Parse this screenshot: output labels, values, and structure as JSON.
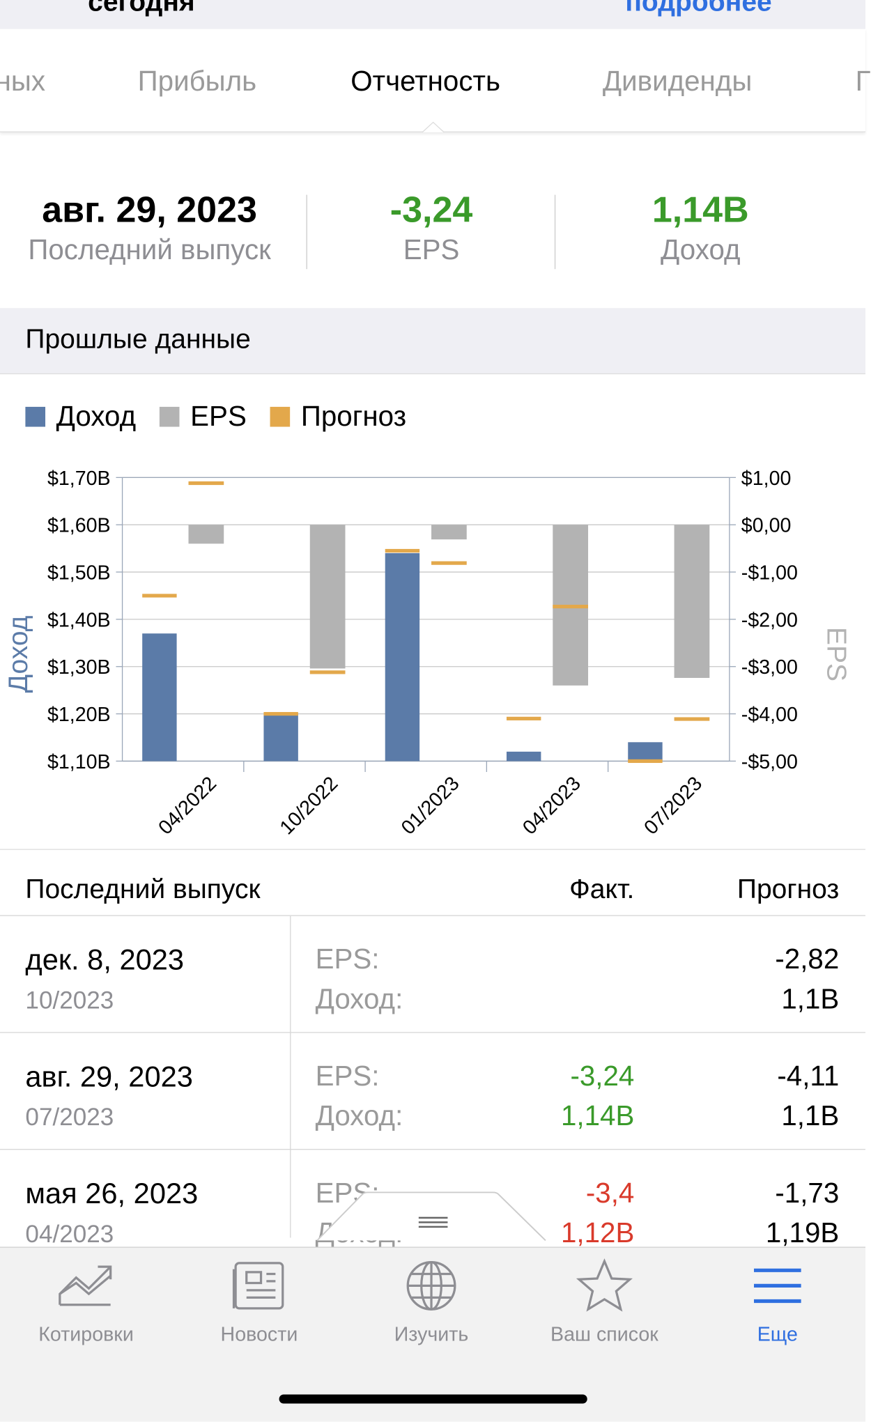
{
  "header": {
    "left": "сегодня",
    "right": "подробнее"
  },
  "tabs": [
    "ных",
    "Прибыль",
    "Отчетность",
    "Дивиденды",
    "Г"
  ],
  "selected_tab": 2,
  "summary": [
    {
      "value": "авг. 29, 2023",
      "label": "Последний выпуск"
    },
    {
      "value": "-3,24",
      "label": "EPS"
    },
    {
      "value": "1,14B",
      "label": "Доход"
    }
  ],
  "section_title": "Прошлые данные",
  "chart_data": {
    "type": "bar",
    "y_label": "Доход",
    "y2_label": "EPS",
    "legend": "top-left",
    "grid": true,
    "categories": [
      "04/2022",
      "10/2022",
      "01/2023",
      "04/2023",
      "07/2023"
    ],
    "series": [
      {
        "name": "Доход",
        "color": "#5b7ba8",
        "values": [
          1.37,
          1.2,
          1.54,
          1.12,
          1.14
        ]
      },
      {
        "name": "EPS",
        "color": "#b3b3b3",
        "axis": "y2",
        "values": [
          -0.4,
          -3.04,
          -0.31,
          -3.4,
          -3.24
        ]
      },
      {
        "name": "Прогноз",
        "color": "#e3a84b",
        "values": [
          1.45,
          1.2,
          1.545,
          1.19,
          1.1
        ],
        "y2_values": [
          0.88,
          -3.12,
          -0.81,
          -1.73,
          -4.11
        ]
      }
    ],
    "ylim": [
      1.1,
      1.7
    ],
    "yticks": [
      {
        "value": 1.1,
        "label": "$1,10B"
      },
      {
        "value": 1.2,
        "label": "$1,20B"
      },
      {
        "value": 1.3,
        "label": "$1,30B"
      },
      {
        "value": 1.4,
        "label": "$1,40B"
      },
      {
        "value": 1.5,
        "label": "$1,50B"
      },
      {
        "value": 1.6,
        "label": "$1,60B"
      },
      {
        "value": 1.7,
        "label": "$1,70B"
      }
    ],
    "y2lim": [
      -5,
      1
    ],
    "y2ticks": [
      {
        "value": -5,
        "label": "-$5,00"
      },
      {
        "value": -4,
        "label": "-$4,00"
      },
      {
        "value": -3,
        "label": "-$3,00"
      },
      {
        "value": -2,
        "label": "-$2,00"
      },
      {
        "value": -1,
        "label": "-$1,00"
      },
      {
        "value": 0,
        "label": "$0,00"
      },
      {
        "value": 1,
        "label": "$1,00"
      }
    ]
  },
  "table": {
    "header": [
      "Последний выпуск",
      "Факт.",
      "Прогноз"
    ],
    "rows": [
      {
        "date": "дек. 8, 2023",
        "period": "10/2023",
        "labels": [
          "EPS:",
          "Доход:"
        ],
        "actual": [
          null,
          null
        ],
        "forecast": [
          "-2,82",
          "1,1B"
        ]
      },
      {
        "date": "авг. 29, 2023",
        "period": "07/2023",
        "labels": [
          "EPS:",
          "Доход:"
        ],
        "actual": [
          "-3,24",
          "1,14B"
        ],
        "forecast": [
          "-4,11",
          "1,1B"
        ]
      },
      {
        "date": "мая 26, 2023",
        "period": "04/2023",
        "labels": [
          "EPS:",
          "Доход:"
        ],
        "actual": [
          "-3,4",
          "1,12B"
        ],
        "forecast": [
          "-1,73",
          "1,19B"
        ]
      }
    ]
  },
  "tab_bar": {
    "items": [
      "Котировки",
      "Новости",
      "Изучить",
      "Ваш список",
      "Еще"
    ],
    "selected": 4
  }
}
